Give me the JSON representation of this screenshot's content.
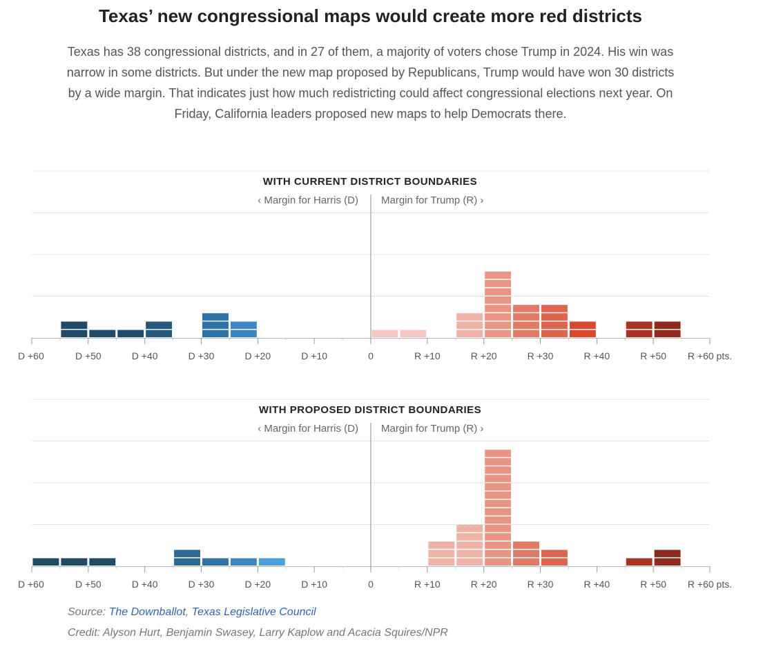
{
  "header": {
    "title": "Texas’ new congressional maps would create more red districts",
    "subtitle": "Texas has 38 congressional districts, and in 27 of them, a majority of voters chose Trump in 2024. His win was narrow in some districts. But under the new map proposed by Republicans, Trump would have won 30 districts by a wide margin. That indicates just how much redistricting could affect congressional elections next year. On Friday, California leaders proposed new maps to help Democrats there."
  },
  "chart_data": [
    {
      "type": "bar",
      "title": "WITH CURRENT DISTRICT BOUNDARIES",
      "left_label": "‹ Margin for Harris (D)",
      "right_label": "Margin for Trump (R) ›",
      "xlim": [
        -60,
        60
      ],
      "bin_width": 5,
      "grid": true,
      "x_ticks": [
        -60,
        -50,
        -40,
        -30,
        -20,
        -10,
        0,
        10,
        20,
        30,
        40,
        50,
        60
      ],
      "x_tick_labels": [
        "D +60",
        "D +50",
        "D +40",
        "D +30",
        "D +20",
        "D +10",
        "0",
        "R +10",
        "R +20",
        "R +30",
        "R +40",
        "R +50",
        "R +60 pts."
      ],
      "bins": [
        {
          "from": -55,
          "to": -50,
          "count": 2
        },
        {
          "from": -50,
          "to": -45,
          "count": 1
        },
        {
          "from": -45,
          "to": -40,
          "count": 1
        },
        {
          "from": -40,
          "to": -35,
          "count": 2
        },
        {
          "from": -35,
          "to": -30,
          "count": 0
        },
        {
          "from": -30,
          "to": -25,
          "count": 3
        },
        {
          "from": -25,
          "to": -20,
          "count": 2
        },
        {
          "from": 0,
          "to": 5,
          "count": 1
        },
        {
          "from": 5,
          "to": 10,
          "count": 1
        },
        {
          "from": 15,
          "to": 20,
          "count": 3
        },
        {
          "from": 20,
          "to": 25,
          "count": 8
        },
        {
          "from": 25,
          "to": 30,
          "count": 4
        },
        {
          "from": 30,
          "to": 35,
          "count": 4
        },
        {
          "from": 35,
          "to": 40,
          "count": 2
        },
        {
          "from": 45,
          "to": 50,
          "count": 2
        },
        {
          "from": 50,
          "to": 55,
          "count": 2
        }
      ]
    },
    {
      "type": "bar",
      "title": "WITH PROPOSED DISTRICT BOUNDARIES",
      "left_label": "‹ Margin for Harris (D)",
      "right_label": "Margin for Trump (R) ›",
      "xlim": [
        -60,
        60
      ],
      "bin_width": 5,
      "grid": true,
      "x_ticks": [
        -60,
        -50,
        -40,
        -30,
        -20,
        -10,
        0,
        10,
        20,
        30,
        40,
        50,
        60
      ],
      "x_tick_labels": [
        "D +60",
        "D +50",
        "D +40",
        "D +30",
        "D +20",
        "D +10",
        "0",
        "R +10",
        "R +20",
        "R +30",
        "R +40",
        "R +50",
        "R +60 pts."
      ],
      "bins": [
        {
          "from": -60,
          "to": -55,
          "count": 1
        },
        {
          "from": -55,
          "to": -50,
          "count": 1
        },
        {
          "from": -50,
          "to": -45,
          "count": 1
        },
        {
          "from": -35,
          "to": -30,
          "count": 2
        },
        {
          "from": -30,
          "to": -25,
          "count": 1
        },
        {
          "from": -25,
          "to": -20,
          "count": 1
        },
        {
          "from": -20,
          "to": -15,
          "count": 1
        },
        {
          "from": 10,
          "to": 15,
          "count": 3
        },
        {
          "from": 15,
          "to": 20,
          "count": 5
        },
        {
          "from": 20,
          "to": 25,
          "count": 14
        },
        {
          "from": 25,
          "to": 30,
          "count": 3
        },
        {
          "from": 30,
          "to": 35,
          "count": 2
        },
        {
          "from": 45,
          "to": 50,
          "count": 1
        },
        {
          "from": 50,
          "to": 55,
          "count": 2
        }
      ]
    }
  ],
  "colors": {
    "D_scale": [
      "#a6cdee",
      "#8cc0e8",
      "#4aa0da",
      "#4aa0da",
      "#3f86c0",
      "#2f72a3",
      "#2b6893",
      "#24587c",
      "#1f4a68",
      "#1f4a68",
      "#1f4a68",
      "#1f4a68"
    ],
    "R_scale": [
      "#f4c8c0",
      "#f4c8c0",
      "#eeb2a6",
      "#eeb2a6",
      "#e89584",
      "#e07a66",
      "#dd6550",
      "#d84932",
      "#c9442a",
      "#a93322",
      "#8f2a1c",
      "#6e1e14"
    ],
    "grid": "#cccccc",
    "axis": "#999999",
    "footer_link": "#3366aa"
  },
  "footer": {
    "source_prefix": "Source: ",
    "source_link_1": "The Downballot",
    "source_sep": ", ",
    "source_link_2": "Texas Legislative Council",
    "credit": "Credit: Alyson Hurt, Benjamin Swasey, Larry Kaplow and Acacia Squires/NPR"
  }
}
